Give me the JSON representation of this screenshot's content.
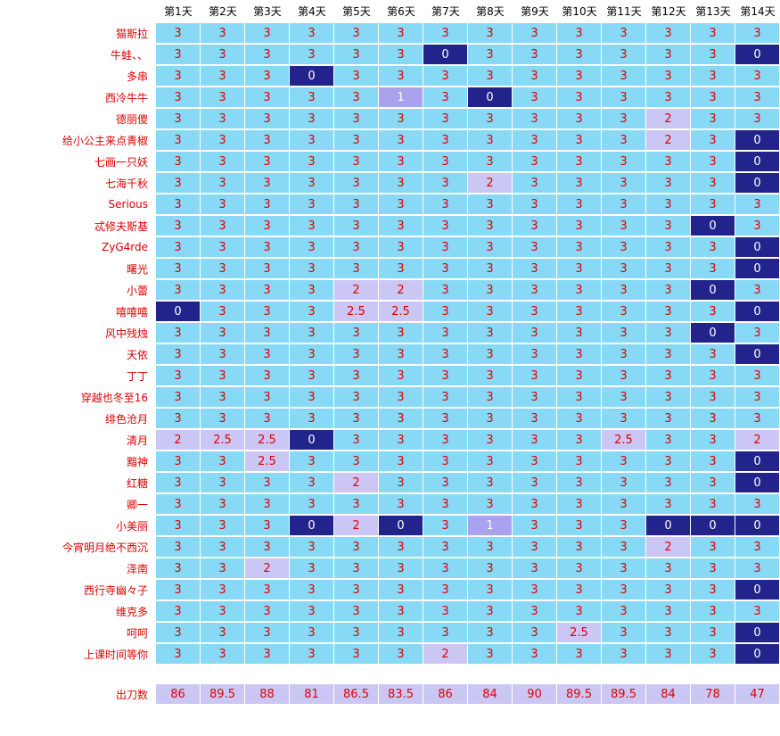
{
  "days": [
    "第1天",
    "第2天",
    "第3天",
    "第4天",
    "第5天",
    "第6天",
    "第7天",
    "第8天",
    "第9天",
    "第10天",
    "第11天",
    "第12天",
    "第13天",
    "第14天"
  ],
  "members": [
    {
      "name": "猫斯拉",
      "values": [
        "3",
        "3",
        "3",
        "3",
        "3",
        "3",
        "3",
        "3",
        "3",
        "3",
        "3",
        "3",
        "3",
        "3"
      ]
    },
    {
      "name": "牛蛙、、",
      "values": [
        "3",
        "3",
        "3",
        "3",
        "3",
        "3",
        "0",
        "3",
        "3",
        "3",
        "3",
        "3",
        "3",
        "0"
      ]
    },
    {
      "name": "多串",
      "values": [
        "3",
        "3",
        "3",
        "0",
        "3",
        "3",
        "3",
        "3",
        "3",
        "3",
        "3",
        "3",
        "3",
        "3"
      ]
    },
    {
      "name": "西冷牛牛",
      "values": [
        "3",
        "3",
        "3",
        "3",
        "3",
        "1",
        "3",
        "0",
        "3",
        "3",
        "3",
        "3",
        "3",
        "3"
      ]
    },
    {
      "name": "德丽傻",
      "values": [
        "3",
        "3",
        "3",
        "3",
        "3",
        "3",
        "3",
        "3",
        "3",
        "3",
        "3",
        "2",
        "3",
        "3"
      ]
    },
    {
      "name": "给小公主来点青椒",
      "values": [
        "3",
        "3",
        "3",
        "3",
        "3",
        "3",
        "3",
        "3",
        "3",
        "3",
        "3",
        "2",
        "3",
        "0"
      ]
    },
    {
      "name": "七画一只妖",
      "values": [
        "3",
        "3",
        "3",
        "3",
        "3",
        "3",
        "3",
        "3",
        "3",
        "3",
        "3",
        "3",
        "3",
        "0"
      ]
    },
    {
      "name": "七海千秋",
      "values": [
        "3",
        "3",
        "3",
        "3",
        "3",
        "3",
        "3",
        "2",
        "3",
        "3",
        "3",
        "3",
        "3",
        "0"
      ]
    },
    {
      "name": "Serious",
      "values": [
        "3",
        "3",
        "3",
        "3",
        "3",
        "3",
        "3",
        "3",
        "3",
        "3",
        "3",
        "3",
        "3",
        "3"
      ]
    },
    {
      "name": "忒修夫斯基",
      "values": [
        "3",
        "3",
        "3",
        "3",
        "3",
        "3",
        "3",
        "3",
        "3",
        "3",
        "3",
        "3",
        "0",
        "3"
      ]
    },
    {
      "name": "ZyG4rde",
      "values": [
        "3",
        "3",
        "3",
        "3",
        "3",
        "3",
        "3",
        "3",
        "3",
        "3",
        "3",
        "3",
        "3",
        "0"
      ]
    },
    {
      "name": "曙光",
      "values": [
        "3",
        "3",
        "3",
        "3",
        "3",
        "3",
        "3",
        "3",
        "3",
        "3",
        "3",
        "3",
        "3",
        "0"
      ]
    },
    {
      "name": "小蕾",
      "values": [
        "3",
        "3",
        "3",
        "3",
        "2",
        "2",
        "3",
        "3",
        "3",
        "3",
        "3",
        "3",
        "0",
        "3"
      ]
    },
    {
      "name": "嘻嘻嘻",
      "values": [
        "0",
        "3",
        "3",
        "3",
        "2.5",
        "2.5",
        "3",
        "3",
        "3",
        "3",
        "3",
        "3",
        "3",
        "0"
      ]
    },
    {
      "name": "风中残烛",
      "values": [
        "3",
        "3",
        "3",
        "3",
        "3",
        "3",
        "3",
        "3",
        "3",
        "3",
        "3",
        "3",
        "0",
        "3"
      ]
    },
    {
      "name": "天依",
      "values": [
        "3",
        "3",
        "3",
        "3",
        "3",
        "3",
        "3",
        "3",
        "3",
        "3",
        "3",
        "3",
        "3",
        "0"
      ]
    },
    {
      "name": "丁丁",
      "values": [
        "3",
        "3",
        "3",
        "3",
        "3",
        "3",
        "3",
        "3",
        "3",
        "3",
        "3",
        "3",
        "3",
        "3"
      ]
    },
    {
      "name": "穿越也冬至16",
      "values": [
        "3",
        "3",
        "3",
        "3",
        "3",
        "3",
        "3",
        "3",
        "3",
        "3",
        "3",
        "3",
        "3",
        "3"
      ]
    },
    {
      "name": "绯色沧月",
      "values": [
        "3",
        "3",
        "3",
        "3",
        "3",
        "3",
        "3",
        "3",
        "3",
        "3",
        "3",
        "3",
        "3",
        "3"
      ]
    },
    {
      "name": "清月",
      "values": [
        "2",
        "2.5",
        "2.5",
        "0",
        "3",
        "3",
        "3",
        "3",
        "3",
        "3",
        "2.5",
        "3",
        "3",
        "2"
      ]
    },
    {
      "name": "黯神",
      "values": [
        "3",
        "3",
        "2.5",
        "3",
        "3",
        "3",
        "3",
        "3",
        "3",
        "3",
        "3",
        "3",
        "3",
        "0"
      ]
    },
    {
      "name": "红糖",
      "values": [
        "3",
        "3",
        "3",
        "3",
        "2",
        "3",
        "3",
        "3",
        "3",
        "3",
        "3",
        "3",
        "3",
        "0"
      ]
    },
    {
      "name": "卿一",
      "values": [
        "3",
        "3",
        "3",
        "3",
        "3",
        "3",
        "3",
        "3",
        "3",
        "3",
        "3",
        "3",
        "3",
        "3"
      ]
    },
    {
      "name": "小美丽",
      "values": [
        "3",
        "3",
        "3",
        "0",
        "2",
        "0",
        "3",
        "1",
        "3",
        "3",
        "3",
        "0",
        "0",
        "0"
      ]
    },
    {
      "name": "今宵明月绝不西沉",
      "values": [
        "3",
        "3",
        "3",
        "3",
        "3",
        "3",
        "3",
        "3",
        "3",
        "3",
        "3",
        "2",
        "3",
        "3"
      ]
    },
    {
      "name": "泽南",
      "values": [
        "3",
        "3",
        "2",
        "3",
        "3",
        "3",
        "3",
        "3",
        "3",
        "3",
        "3",
        "3",
        "3",
        "3"
      ]
    },
    {
      "name": "西行寺幽々子",
      "values": [
        "3",
        "3",
        "3",
        "3",
        "3",
        "3",
        "3",
        "3",
        "3",
        "3",
        "3",
        "3",
        "3",
        "0"
      ]
    },
    {
      "name": "维克多",
      "values": [
        "3",
        "3",
        "3",
        "3",
        "3",
        "3",
        "3",
        "3",
        "3",
        "3",
        "3",
        "3",
        "3",
        "3"
      ]
    },
    {
      "name": "呵呵",
      "values": [
        "3",
        "3",
        "3",
        "3",
        "3",
        "3",
        "3",
        "3",
        "3",
        "2.5",
        "3",
        "3",
        "3",
        "0"
      ]
    },
    {
      "name": "上课时间等你",
      "values": [
        "3",
        "3",
        "3",
        "3",
        "3",
        "3",
        "2",
        "3",
        "3",
        "3",
        "3",
        "3",
        "3",
        "0"
      ]
    }
  ],
  "totals": {
    "label": "出刀数",
    "values": [
      "86",
      "89.5",
      "88",
      "81",
      "86.5",
      "83.5",
      "86",
      "84",
      "90",
      "89.5",
      "89.5",
      "84",
      "78",
      "47"
    ]
  },
  "colors": {
    "full": "#87d9f5",
    "zero": "#23238c",
    "one": "#a9a2ee",
    "partial": "#cbc7f5",
    "text_red": "#e00000"
  }
}
